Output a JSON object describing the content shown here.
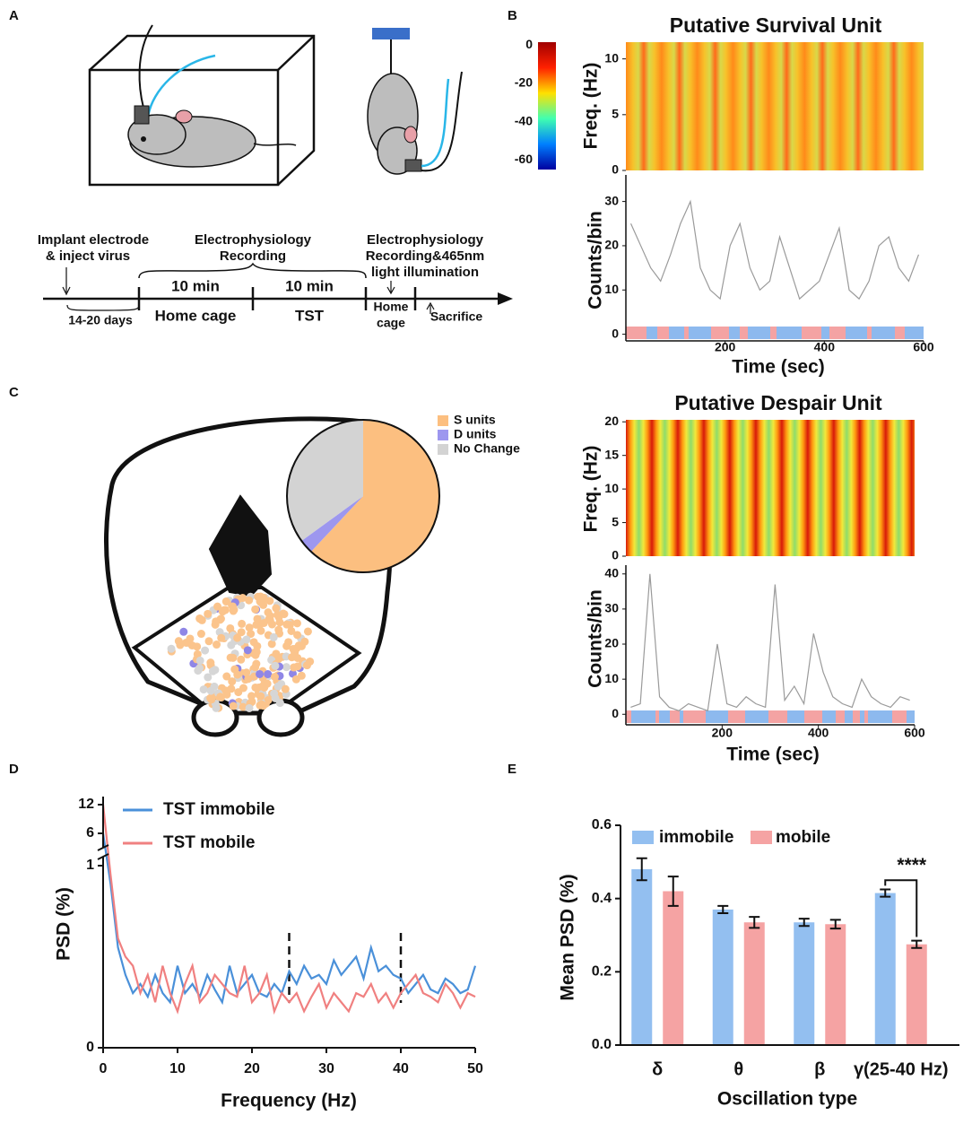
{
  "panel_labels": [
    "A",
    "B",
    "C",
    "D",
    "E"
  ],
  "diagram": {
    "implant": "Implant electrode",
    "inject": "& inject virus",
    "ephys1": "Electrophysiology",
    "rec1": "Recording",
    "ephys2": "Electrophysiology",
    "rec2": "Recording&465nm",
    "light": "light illumination",
    "min1": "10 min",
    "min2": "10 min",
    "home": "Home cage",
    "tst": "TST",
    "home2a": "Home",
    "home2b": "cage",
    "sacrifice": "Sacrifice",
    "days": "14-20 days"
  },
  "chart_data": [
    {
      "type": "counts",
      "title": "Putative Survival Unit",
      "xlabel": "Time (sec)",
      "ylabel": "Counts/bin",
      "x": [
        10,
        30,
        50,
        70,
        90,
        110,
        130,
        150,
        170,
        190,
        210,
        230,
        250,
        270,
        290,
        310,
        330,
        350,
        370,
        390,
        410,
        430,
        450,
        470,
        490,
        510,
        530,
        550,
        570,
        590
      ],
      "series": [
        {
          "color": "#9a9a9a",
          "values": [
            25,
            20,
            15,
            12,
            18,
            25,
            30,
            15,
            10,
            8,
            20,
            25,
            15,
            10,
            12,
            22,
            15,
            8,
            10,
            12,
            18,
            24,
            10,
            8,
            12,
            20,
            22,
            15,
            12,
            18
          ]
        }
      ],
      "xlim": [
        0,
        600
      ],
      "xticks": [
        200,
        400,
        600
      ],
      "ylim": [
        -1.5,
        36
      ],
      "yticks": [
        0,
        10,
        20,
        30
      ],
      "spectrogram": {
        "ylabel": "Freq. (Hz)",
        "ylim": [
          0,
          11.5
        ],
        "yticks": [
          0,
          5,
          10
        ]
      },
      "colorbar": {
        "lim": [
          -65,
          1.5
        ],
        "ticks": [
          0,
          -20,
          -40,
          -60
        ]
      }
    },
    {
      "type": "counts",
      "title": "Putative Despair Unit",
      "xlabel": "Time (sec)",
      "ylabel": "Counts/bin",
      "x": [
        10,
        30,
        50,
        70,
        90,
        110,
        130,
        150,
        170,
        190,
        210,
        230,
        250,
        270,
        290,
        310,
        330,
        350,
        370,
        390,
        410,
        430,
        450,
        470,
        490,
        510,
        530,
        550,
        570,
        590
      ],
      "series": [
        {
          "color": "#9a9a9a",
          "values": [
            2,
            3,
            40,
            5,
            2,
            1,
            3,
            2,
            1,
            20,
            3,
            2,
            5,
            3,
            2,
            37,
            4,
            8,
            3,
            23,
            12,
            5,
            3,
            2,
            10,
            5,
            3,
            2,
            5,
            4
          ]
        }
      ],
      "xlim": [
        0,
        600
      ],
      "xticks": [
        200,
        400,
        600
      ],
      "ylim": [
        -3,
        42.5
      ],
      "yticks": [
        0,
        10,
        20,
        30,
        40
      ],
      "spectrogram": {
        "ylabel": "Freq. (Hz)",
        "ylim": [
          0,
          20.3
        ],
        "yticks": [
          0,
          5,
          10,
          15,
          20
        ]
      }
    },
    {
      "type": "pie",
      "categories": [
        "S units",
        "D units",
        "No Change"
      ],
      "values": [
        62,
        3,
        35
      ],
      "colors": [
        "#fcbf80",
        "#9d97ef",
        "#d3d3d3"
      ]
    },
    {
      "type": "psd",
      "xlabel": "Frequency (Hz)",
      "ylabel": "PSD (%)",
      "x": [
        0,
        1,
        2,
        3,
        4,
        5,
        6,
        7,
        8,
        9,
        10,
        11,
        12,
        13,
        14,
        15,
        16,
        17,
        18,
        19,
        20,
        21,
        22,
        23,
        24,
        25,
        26,
        27,
        28,
        29,
        30,
        31,
        32,
        33,
        34,
        35,
        36,
        37,
        38,
        39,
        40,
        41,
        42,
        43,
        44,
        45,
        46,
        47,
        48,
        49,
        50
      ],
      "series": [
        {
          "name": "TST immobile",
          "color": "#4a90d9",
          "values": [
            6,
            0.9,
            0.55,
            0.4,
            0.3,
            0.35,
            0.28,
            0.4,
            0.3,
            0.25,
            0.45,
            0.3,
            0.35,
            0.28,
            0.4,
            0.32,
            0.25,
            0.45,
            0.3,
            0.35,
            0.4,
            0.3,
            0.28,
            0.35,
            0.3,
            0.42,
            0.35,
            0.45,
            0.38,
            0.4,
            0.35,
            0.48,
            0.4,
            0.45,
            0.5,
            0.38,
            0.55,
            0.42,
            0.45,
            0.4,
            0.38,
            0.3,
            0.35,
            0.4,
            0.32,
            0.3,
            0.38,
            0.35,
            0.3,
            0.32,
            0.45
          ]
        },
        {
          "name": "TST mobile",
          "color": "#f08080",
          "values": [
            12,
            0.95,
            0.6,
            0.5,
            0.45,
            0.3,
            0.4,
            0.25,
            0.45,
            0.3,
            0.2,
            0.35,
            0.45,
            0.25,
            0.3,
            0.4,
            0.35,
            0.3,
            0.28,
            0.45,
            0.25,
            0.3,
            0.4,
            0.2,
            0.3,
            0.25,
            0.3,
            0.2,
            0.28,
            0.35,
            0.22,
            0.3,
            0.25,
            0.2,
            0.3,
            0.28,
            0.35,
            0.25,
            0.3,
            0.22,
            0.3,
            0.35,
            0.4,
            0.3,
            0.28,
            0.25,
            0.35,
            0.3,
            0.22,
            0.3,
            0.28
          ]
        }
      ],
      "xlim": [
        0,
        50
      ],
      "xticks": [
        0,
        10,
        20,
        30,
        40,
        50
      ],
      "ylim": [
        0,
        12
      ],
      "yticks": [
        0,
        1,
        6,
        12
      ],
      "reference_lines": [
        25,
        40
      ]
    },
    {
      "type": "bar",
      "xlabel": "Oscillation type",
      "ylabel": "Mean PSD (%)",
      "categories": [
        "δ",
        "θ",
        "β",
        "γ(25-40 Hz)"
      ],
      "series": [
        {
          "name": "immobile",
          "color": "#93bff0",
          "values": [
            0.48,
            0.37,
            0.335,
            0.415
          ],
          "errors": [
            0.03,
            0.01,
            0.01,
            0.01
          ]
        },
        {
          "name": "mobile",
          "color": "#f5a3a3",
          "values": [
            0.42,
            0.335,
            0.33,
            0.275
          ],
          "errors": [
            0.04,
            0.015,
            0.012,
            0.01
          ]
        }
      ],
      "ylim": [
        0,
        0.6
      ],
      "yticks": [
        {
          "value": 0,
          "label": "0.0"
        },
        0.2,
        0.4,
        0.6
      ],
      "annotation": "****"
    }
  ]
}
